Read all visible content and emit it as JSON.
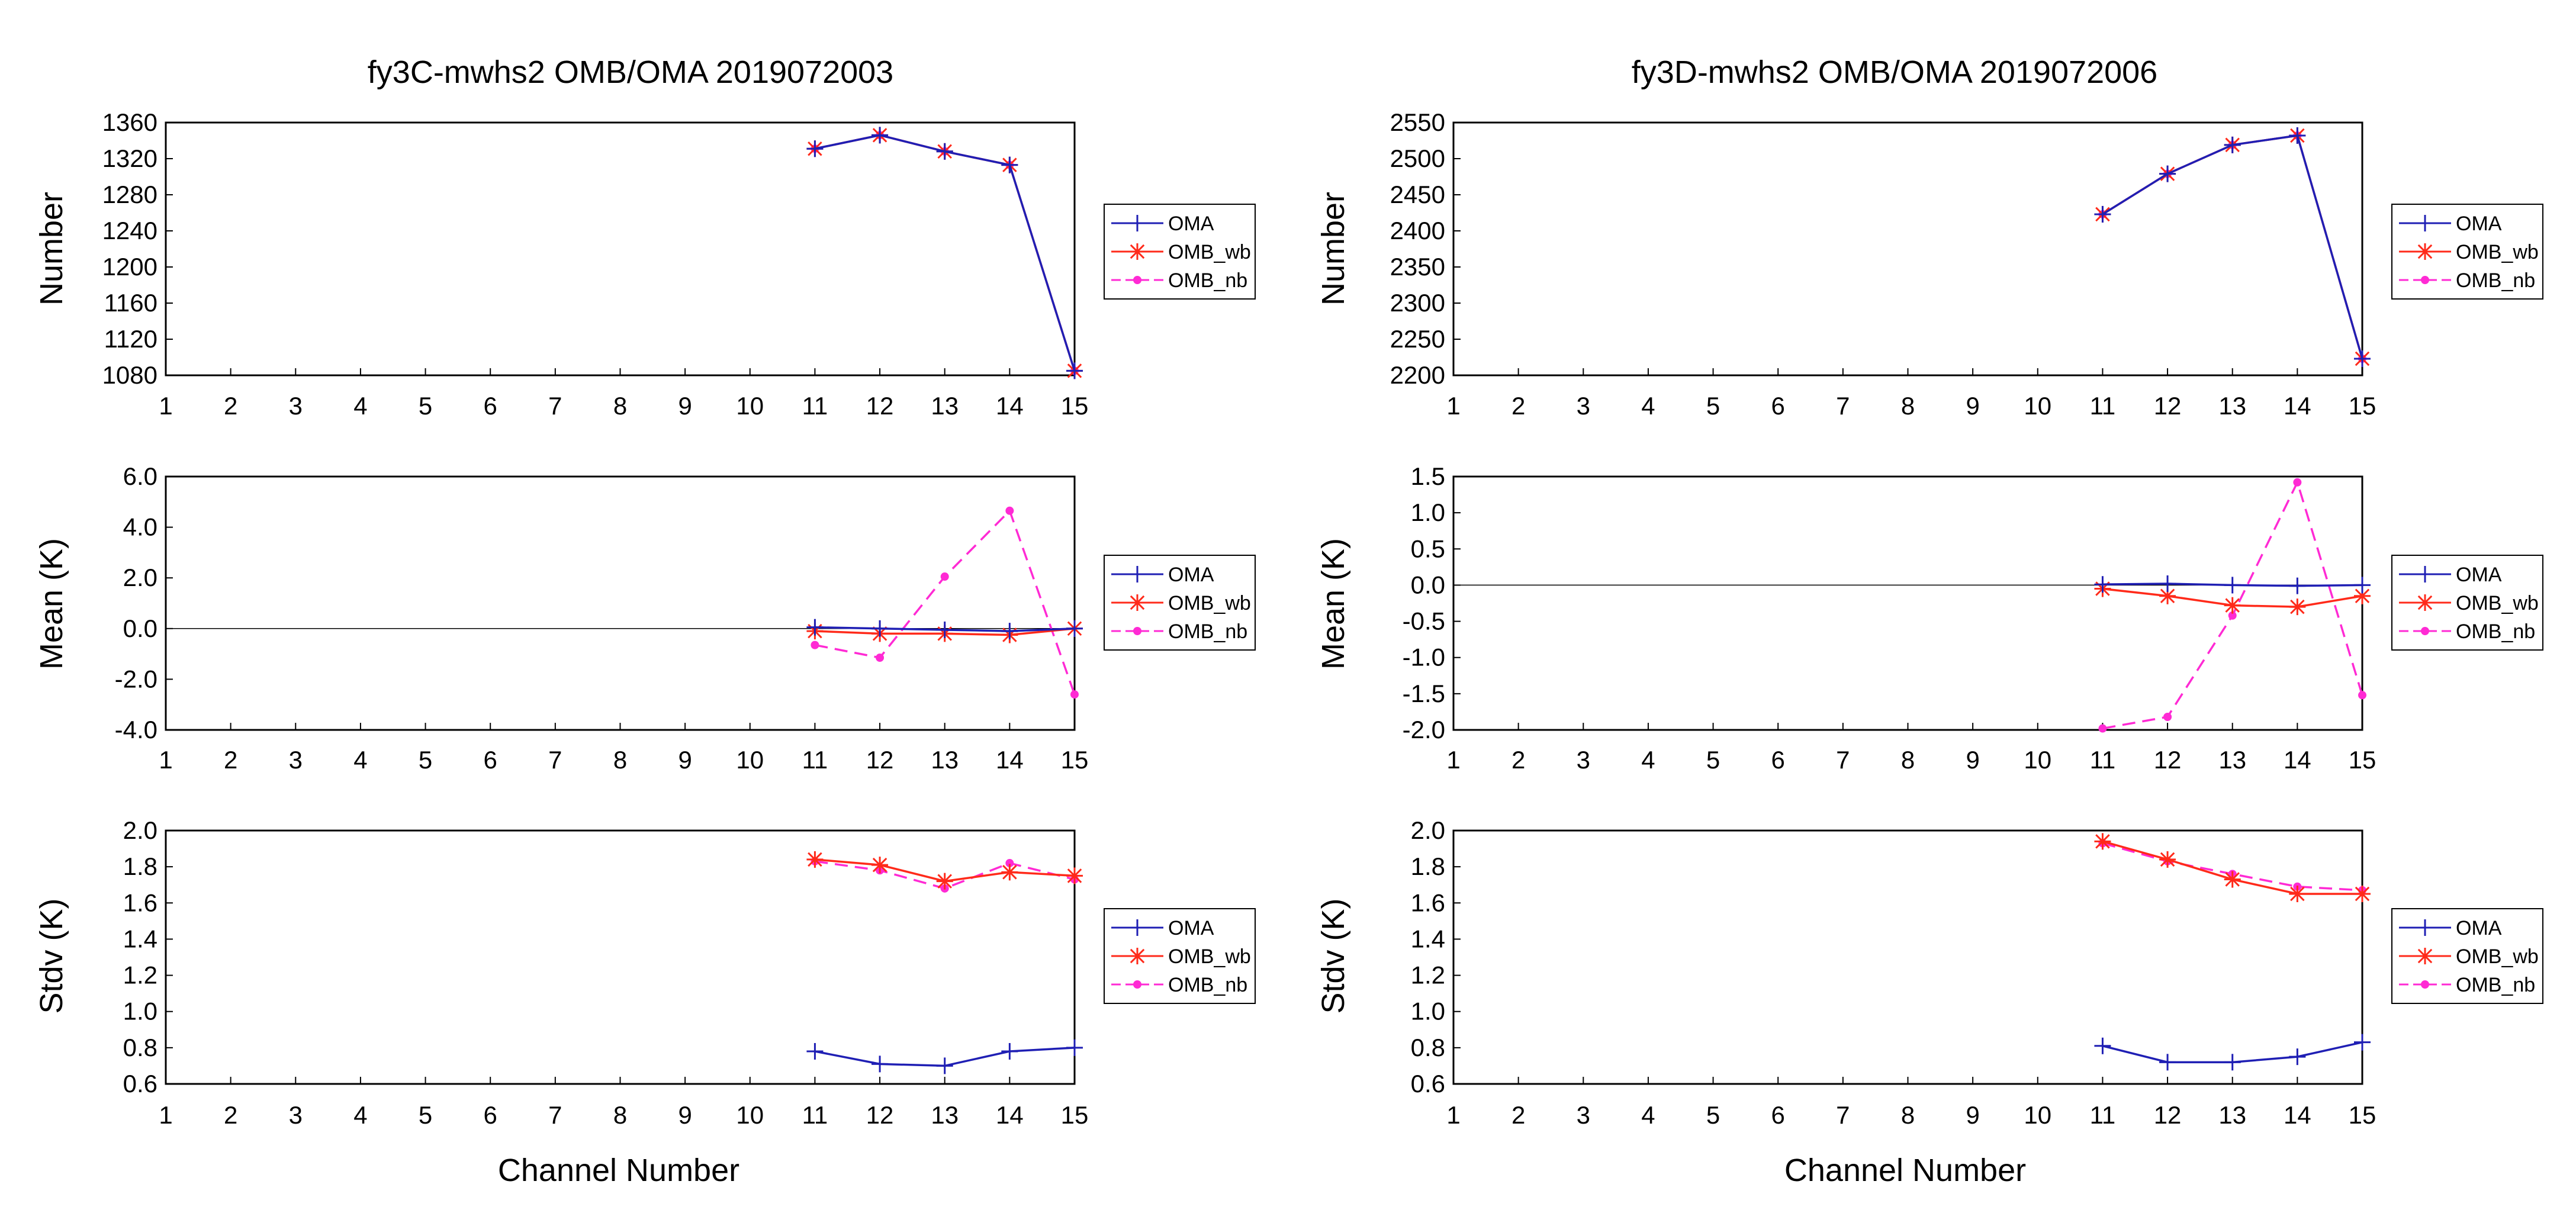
{
  "colors": {
    "OMA": "#1f1fb4",
    "OMB_wb": "#ff2a1a",
    "OMB_nb": "#ff2ad4",
    "axis": "#000000",
    "zero_line": "#000000"
  },
  "chart_data": [
    {
      "title": "fy3C-mwhs2   OMB/OMA   2019072003",
      "xlabel": "Channel Number",
      "categories": [
        1,
        2,
        3,
        4,
        5,
        6,
        7,
        8,
        9,
        10,
        11,
        12,
        13,
        14,
        15
      ],
      "panels": [
        {
          "type": "line",
          "ylabel": "Number",
          "ylim": [
            1080,
            1360
          ],
          "yticks": [
            "1360",
            "1320",
            "1280",
            "1240",
            "1200",
            "1160",
            "1120",
            "1080"
          ],
          "zero_line": false,
          "series": [
            {
              "name": "OMA",
              "x": [
                11,
                12,
                13,
                14,
                15
              ],
              "values": [
                1331,
                1346,
                1328,
                1313,
                1085
              ]
            },
            {
              "name": "OMB_wb",
              "x": [
                11,
                12,
                13,
                14,
                15
              ],
              "values": [
                1331,
                1346,
                1328,
                1313,
                1085
              ]
            },
            {
              "name": "OMB_nb",
              "x": [
                11,
                12,
                13,
                14,
                15
              ],
              "values": [
                1331,
                1346,
                1328,
                1313,
                1085
              ]
            }
          ]
        },
        {
          "type": "line",
          "ylabel": "Mean (K)",
          "ylim": [
            -4,
            6
          ],
          "yticks": [
            "6.0",
            "4.0",
            "2.0",
            "0.0",
            "-2.0",
            "-4.0"
          ],
          "zero_line": true,
          "series": [
            {
              "name": "OMA",
              "x": [
                11,
                12,
                13,
                14,
                15
              ],
              "values": [
                0.05,
                0.0,
                -0.05,
                -0.1,
                0.0
              ]
            },
            {
              "name": "OMB_wb",
              "x": [
                11,
                12,
                13,
                14,
                15
              ],
              "values": [
                -0.1,
                -0.2,
                -0.2,
                -0.25,
                0.0
              ]
            },
            {
              "name": "OMB_nb",
              "x": [
                11,
                12,
                13,
                14,
                15
              ],
              "values": [
                -0.65,
                -1.15,
                2.05,
                4.65,
                -2.6
              ]
            }
          ]
        },
        {
          "type": "line",
          "ylabel": "Stdv (K)",
          "ylim": [
            0.6,
            2.0
          ],
          "yticks": [
            "2.0",
            "1.8",
            "1.6",
            "1.4",
            "1.2",
            "1.0",
            "0.8",
            "0.6"
          ],
          "zero_line": false,
          "series": [
            {
              "name": "OMA",
              "x": [
                11,
                12,
                13,
                14,
                15
              ],
              "values": [
                0.78,
                0.71,
                0.7,
                0.78,
                0.8
              ]
            },
            {
              "name": "OMB_wb",
              "x": [
                11,
                12,
                13,
                14,
                15
              ],
              "values": [
                1.84,
                1.81,
                1.72,
                1.77,
                1.75
              ]
            },
            {
              "name": "OMB_nb",
              "x": [
                11,
                12,
                13,
                14,
                15
              ],
              "values": [
                1.83,
                1.78,
                1.68,
                1.82,
                1.73
              ]
            }
          ]
        }
      ]
    },
    {
      "title": "fy3D-mwhs2   OMB/OMA   2019072006",
      "xlabel": "Channel Number",
      "categories": [
        1,
        2,
        3,
        4,
        5,
        6,
        7,
        8,
        9,
        10,
        11,
        12,
        13,
        14,
        15
      ],
      "panels": [
        {
          "type": "line",
          "ylabel": "Number",
          "ylim": [
            2200,
            2550
          ],
          "yticks": [
            "2550",
            "2500",
            "2450",
            "2400",
            "2350",
            "2300",
            "2250",
            "2200"
          ],
          "zero_line": false,
          "series": [
            {
              "name": "OMA",
              "x": [
                11,
                12,
                13,
                14,
                15
              ],
              "values": [
                2423,
                2479,
                2519,
                2532,
                2223
              ]
            },
            {
              "name": "OMB_wb",
              "x": [
                11,
                12,
                13,
                14,
                15
              ],
              "values": [
                2423,
                2479,
                2519,
                2532,
                2223
              ]
            },
            {
              "name": "OMB_nb",
              "x": [
                11,
                12,
                13,
                14,
                15
              ],
              "values": [
                2423,
                2479,
                2519,
                2532,
                2223
              ]
            }
          ]
        },
        {
          "type": "line",
          "ylabel": "Mean (K)",
          "ylim": [
            -2,
            1.5
          ],
          "yticks": [
            "1.5",
            "1.0",
            "0.5",
            "0.0",
            "-0.5",
            "-1.0",
            "-1.5",
            "-2.0"
          ],
          "zero_line": true,
          "series": [
            {
              "name": "OMA",
              "x": [
                11,
                12,
                13,
                14,
                15
              ],
              "values": [
                0.01,
                0.02,
                0.0,
                -0.01,
                0.0
              ]
            },
            {
              "name": "OMB_wb",
              "x": [
                11,
                12,
                13,
                14,
                15
              ],
              "values": [
                -0.05,
                -0.15,
                -0.28,
                -0.3,
                -0.15
              ]
            },
            {
              "name": "OMB_nb",
              "x": [
                11,
                12,
                13,
                14,
                15
              ],
              "values": [
                -1.98,
                -1.82,
                -0.42,
                1.42,
                -1.52
              ]
            }
          ]
        },
        {
          "type": "line",
          "ylabel": "Stdv (K)",
          "ylim": [
            0.6,
            2.0
          ],
          "yticks": [
            "2.0",
            "1.8",
            "1.6",
            "1.4",
            "1.2",
            "1.0",
            "0.8",
            "0.6"
          ],
          "zero_line": false,
          "series": [
            {
              "name": "OMA",
              "x": [
                11,
                12,
                13,
                14,
                15
              ],
              "values": [
                0.81,
                0.72,
                0.72,
                0.75,
                0.83
              ]
            },
            {
              "name": "OMB_wb",
              "x": [
                11,
                12,
                13,
                14,
                15
              ],
              "values": [
                1.94,
                1.84,
                1.73,
                1.65,
                1.65
              ]
            },
            {
              "name": "OMB_nb",
              "x": [
                11,
                12,
                13,
                14,
                15
              ],
              "values": [
                1.93,
                1.83,
                1.76,
                1.69,
                1.67
              ]
            }
          ]
        }
      ]
    }
  ]
}
